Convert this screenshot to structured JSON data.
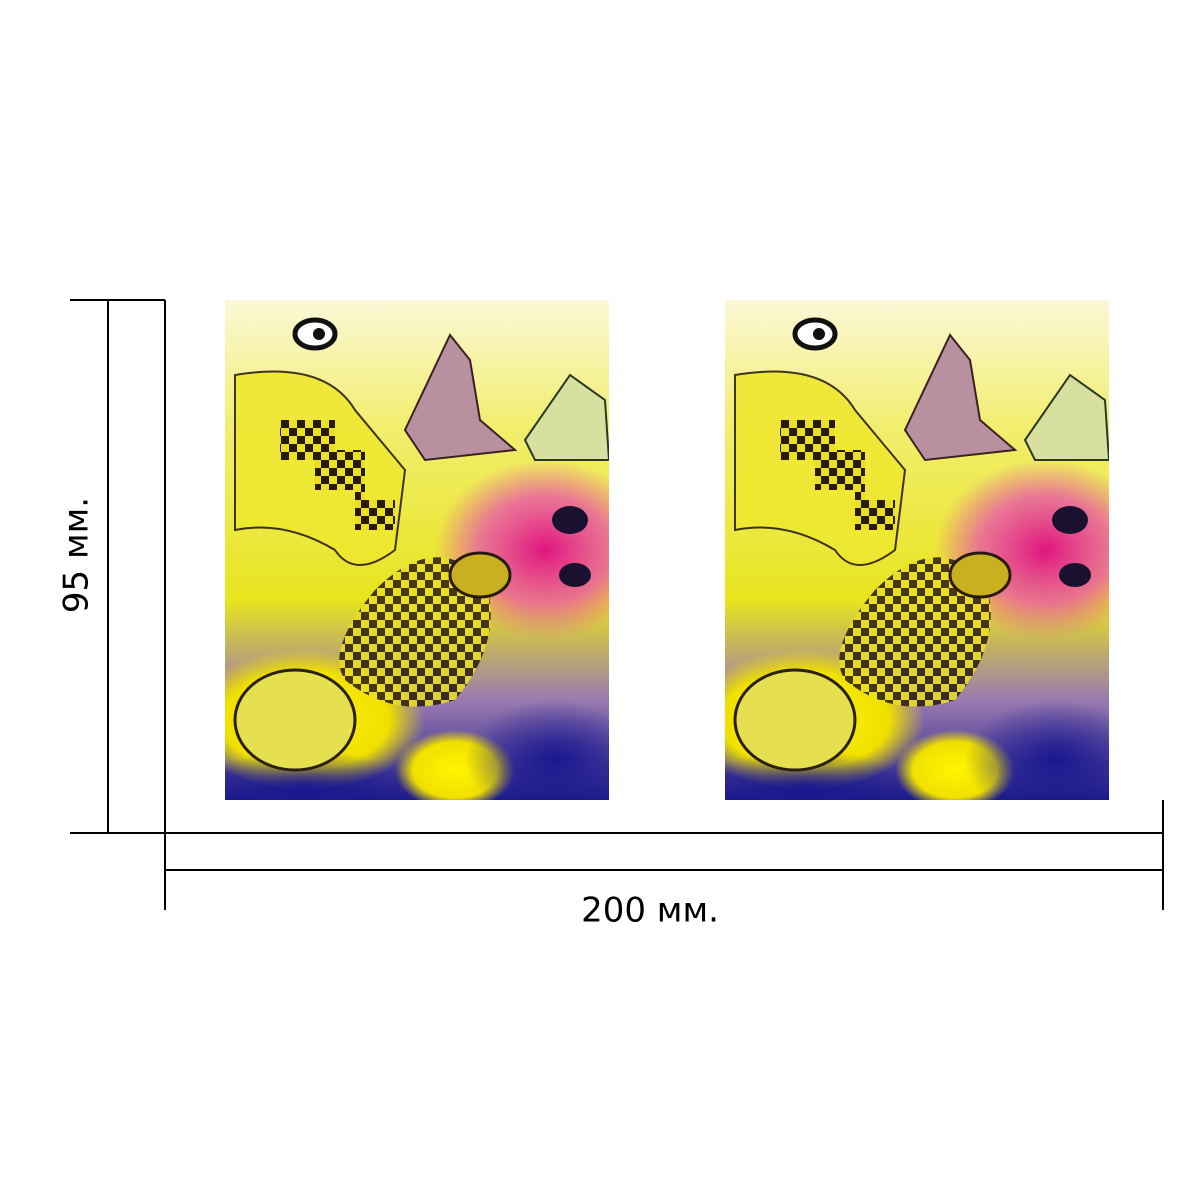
{
  "height_label": "95 мм.",
  "width_label": "200 мм."
}
